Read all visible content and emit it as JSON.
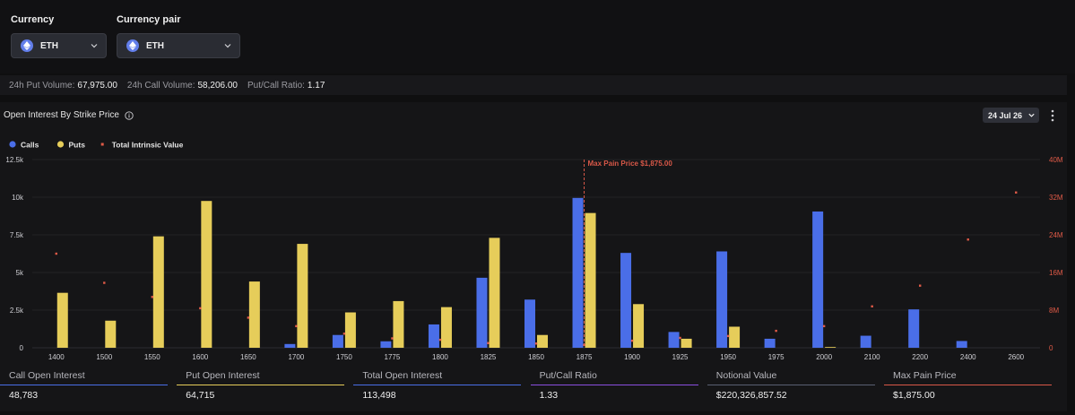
{
  "selectors": {
    "currency": {
      "label": "Currency",
      "value": "ETH",
      "icon": "ethereum-icon"
    },
    "pair": {
      "label": "Currency pair",
      "value": "ETH",
      "icon": "ethereum-icon"
    }
  },
  "stats": {
    "put_volume_label": "24h Put Volume:",
    "put_volume": "67,975.00",
    "call_volume_label": "24h Call Volume:",
    "call_volume": "58,206.00",
    "ratio_label": "Put/Call Ratio:",
    "ratio": "1.17"
  },
  "panel": {
    "title": "Open Interest By Strike Price",
    "info_icon": "info-icon",
    "date": "24 Jul 26",
    "more_icon": "more-vertical-icon"
  },
  "colors": {
    "calls": "#4a6ee8",
    "puts": "#e6cd5a",
    "intrinsic": "#e05a47",
    "max_pain": "#d95848"
  },
  "chart_data": {
    "type": "bar",
    "legend": [
      "Calls",
      "Puts",
      "Total Intrinsic Value"
    ],
    "legend_position": "top-left",
    "categories": [
      "1400",
      "1500",
      "1550",
      "1600",
      "1650",
      "1700",
      "1750",
      "1775",
      "1800",
      "1825",
      "1850",
      "1875",
      "1900",
      "1925",
      "1950",
      "1975",
      "2000",
      "2100",
      "2200",
      "2400",
      "2600"
    ],
    "series": [
      {
        "name": "Calls",
        "axis": "left",
        "values": [
          0,
          0,
          0,
          0,
          0,
          250,
          850,
          430,
          1550,
          4650,
          3200,
          9950,
          6300,
          1050,
          6400,
          600,
          9050,
          800,
          2550,
          450,
          0
        ]
      },
      {
        "name": "Puts",
        "axis": "left",
        "values": [
          3650,
          1800,
          7400,
          9750,
          4400,
          6900,
          2350,
          3100,
          2700,
          7300,
          850,
          8950,
          2900,
          600,
          1400,
          0,
          50,
          0,
          0,
          0,
          0
        ]
      },
      {
        "name": "Total Intrinsic Value",
        "type": "scatter",
        "axis": "right",
        "values": [
          20000000,
          13800000,
          10800000,
          8400000,
          6400000,
          4600000,
          3000000,
          2000000,
          1700000,
          1000000,
          900000,
          600000,
          1500000,
          2100000,
          2500000,
          3600000,
          4600000,
          8800000,
          13200000,
          23000000,
          33000000
        ]
      }
    ],
    "y_left": {
      "ticks": [
        "0",
        "2.5k",
        "5k",
        "7.5k",
        "10k",
        "12.5k"
      ],
      "lim": [
        0,
        12500
      ]
    },
    "y_right": {
      "ticks": [
        "0",
        "8M",
        "16M",
        "24M",
        "32M",
        "40M"
      ],
      "lim": [
        0,
        40000000
      ]
    },
    "max_pain": {
      "category": "1875",
      "label": "Max Pain Price $1,875.00"
    },
    "grid": true
  },
  "metrics": [
    {
      "label": "Call Open Interest",
      "value": "48,783",
      "color": "#4a6ee8"
    },
    {
      "label": "Put Open Interest",
      "value": "64,715",
      "color": "#e6cd5a"
    },
    {
      "label": "Total Open Interest",
      "value": "113,498",
      "color": "#4a6ee8"
    },
    {
      "label": "Put/Call Ratio",
      "value": "1.33",
      "color": "#8a4fe0"
    },
    {
      "label": "Notional Value",
      "value": "$220,326,857.52",
      "color": "#5a5f73"
    },
    {
      "label": "Max Pain Price",
      "value": "$1,875.00",
      "color": "#d95848"
    }
  ]
}
